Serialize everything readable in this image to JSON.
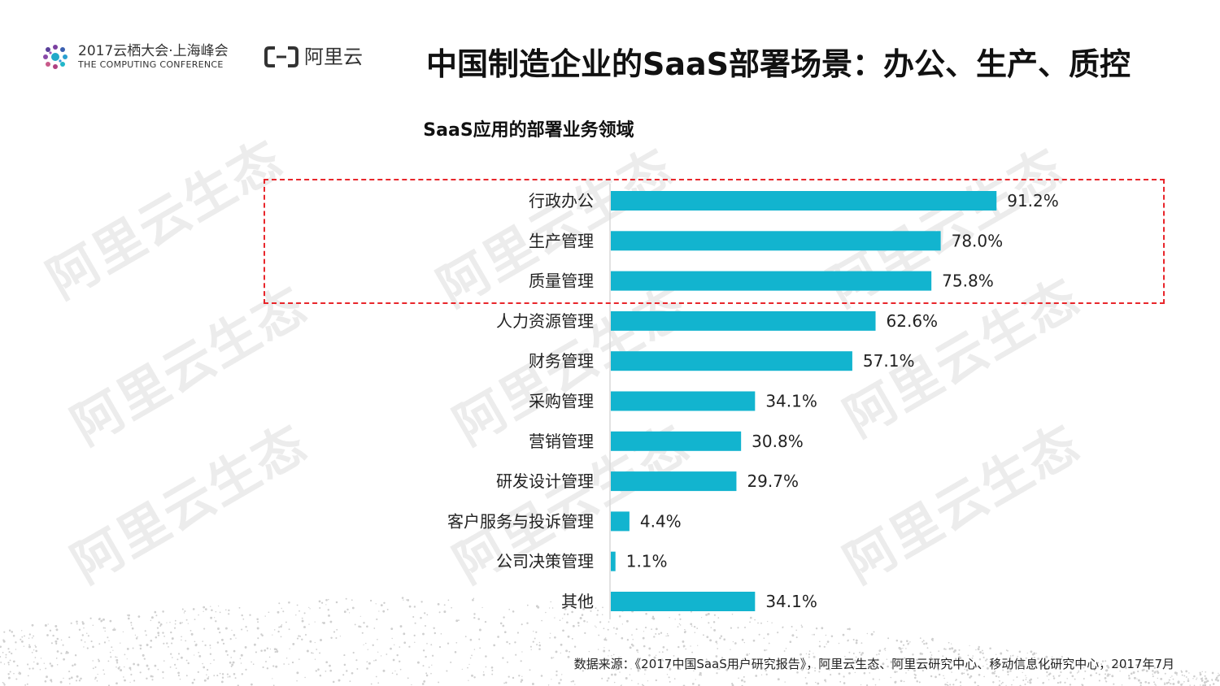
{
  "header": {
    "conference_name": "2017云栖大会·上海峰会",
    "conference_subtitle": "THE COMPUTING CONFERENCE",
    "brand_name": "阿里云"
  },
  "page_title": "中国制造企业的SaaS部署场景：办公、生产、质控",
  "watermark_text": "阿里云生态",
  "footer": {
    "source": "数据来源：《2017中国SaaS用户研究报告》，阿里云生态、阿里云研究中心、移动信息化研究中心，2017年7月"
  },
  "colors": {
    "bar": "#12b4cf",
    "highlight_border": "#e8262b",
    "watermark": "#ececec"
  },
  "chart_data": {
    "type": "bar",
    "orientation": "horizontal",
    "title": "SaaS应用的部署业务领域",
    "categories": [
      "行政办公",
      "生产管理",
      "质量管理",
      "人力资源管理",
      "财务管理",
      "采购管理",
      "营销管理",
      "研发设计管理",
      "客户服务与投诉管理",
      "公司决策管理",
      "其他"
    ],
    "values": [
      91.2,
      78.0,
      75.8,
      62.6,
      57.1,
      34.1,
      30.8,
      29.7,
      4.4,
      1.1,
      34.1
    ],
    "value_labels": [
      "91.2%",
      "78.0%",
      "75.8%",
      "62.6%",
      "57.1%",
      "34.1%",
      "30.8%",
      "29.7%",
      "4.4%",
      "1.1%",
      "34.1%"
    ],
    "unit": "%",
    "xlim": [
      0,
      100
    ],
    "highlighted_categories": [
      "行政办公",
      "生产管理",
      "质量管理"
    ],
    "xlabel": "",
    "ylabel": "",
    "grid": false
  }
}
